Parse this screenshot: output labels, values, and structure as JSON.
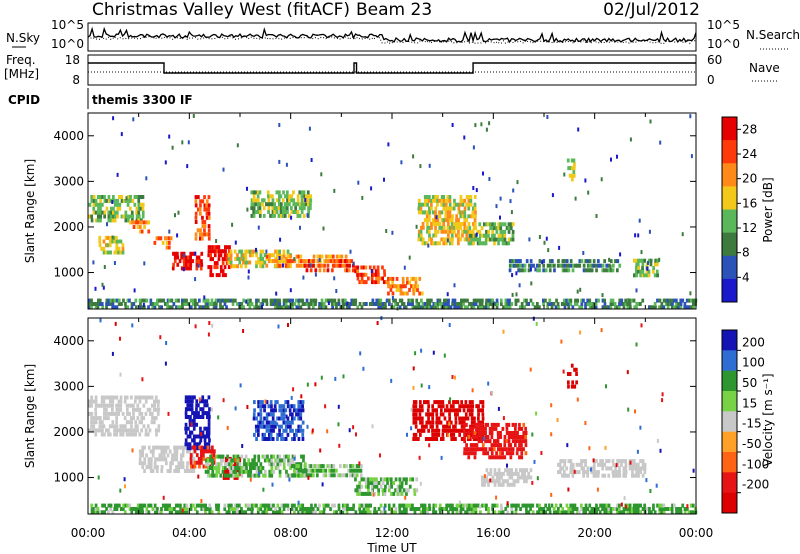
{
  "header": {
    "title": "Christmas Valley West (fitACF)",
    "beam": "Beam 23",
    "date": "02/Jul/2012"
  },
  "param_panel": {
    "nsky_label": "N.Sky",
    "nsearch_label": "N.Search",
    "noise_ticks_left": [
      "10^5",
      "10^0"
    ],
    "noise_ticks_right": [
      "10^5",
      "10^0"
    ],
    "freq_label": [
      "Freq.",
      "[MHz]"
    ],
    "freq_ticks": [
      "18",
      "8"
    ],
    "nave_label": "Nave",
    "nave_ticks": [
      "60",
      "0"
    ],
    "cpid_label": "CPID",
    "cpid_value": "themis 3300 IF"
  },
  "colors": {
    "power": [
      "#1a1acc",
      "#2a52b8",
      "#3d7a3d",
      "#5ab85a",
      "#f2c81a",
      "#ff8a1a",
      "#ff3a0a",
      "#e60000"
    ],
    "velocity": [
      "#1414b4",
      "#2e6ed2",
      "#2e962e",
      "#78d246",
      "#c8c8c8",
      "#ffa028",
      "#ff6414",
      "#e61414",
      "#dc0000"
    ],
    "ground_scatter": "#c8c8c8"
  },
  "chart_data": [
    {
      "type": "heatmap",
      "panel": "power",
      "ylabel": "Slant Range [km]",
      "yticks": [
        "1000",
        "2000",
        "3000",
        "4000"
      ],
      "ylim": [
        200,
        4500
      ],
      "xlim_hours": [
        0,
        24
      ],
      "colorbar_label": "Power [dB]",
      "colorbar_ticks": [
        "4",
        "8",
        "12",
        "16",
        "20",
        "24",
        "28"
      ],
      "colorbar_range": [
        0,
        30
      ],
      "features": [
        {
          "t": [
            0.0,
            2.2
          ],
          "r": [
            2100,
            2700
          ],
          "level": 3
        },
        {
          "t": [
            0.4,
            1.4
          ],
          "r": [
            1400,
            1800
          ],
          "level": 4
        },
        {
          "t": [
            1.6,
            2.4
          ],
          "r": [
            1850,
            2150
          ],
          "level": 5
        },
        {
          "t": [
            2.5,
            3.3
          ],
          "r": [
            1500,
            1800
          ],
          "level": 5
        },
        {
          "t": [
            3.3,
            4.5
          ],
          "r": [
            1050,
            1450
          ],
          "level": 7
        },
        {
          "t": [
            4.2,
            4.8
          ],
          "r": [
            1700,
            2700
          ],
          "level": 6
        },
        {
          "t": [
            4.7,
            5.6
          ],
          "r": [
            900,
            1600
          ],
          "level": 7
        },
        {
          "t": [
            5.5,
            8.0
          ],
          "r": [
            1100,
            1500
          ],
          "level": 4
        },
        {
          "t": [
            6.4,
            8.8
          ],
          "r": [
            2200,
            2800
          ],
          "level": 3
        },
        {
          "t": [
            7.0,
            10.2
          ],
          "r": [
            1100,
            1400
          ],
          "level": 5
        },
        {
          "t": [
            8.5,
            10.5
          ],
          "r": [
            1000,
            1300
          ],
          "level": 6
        },
        {
          "t": [
            10.5,
            11.8
          ],
          "r": [
            750,
            1150
          ],
          "level": 6
        },
        {
          "t": [
            11.8,
            13.2
          ],
          "r": [
            500,
            900
          ],
          "level": 5
        },
        {
          "t": [
            13.0,
            15.3
          ],
          "r": [
            1600,
            2700
          ],
          "level": 4
        },
        {
          "t": [
            15.0,
            16.8
          ],
          "r": [
            1600,
            2100
          ],
          "level": 3
        },
        {
          "t": [
            16.6,
            21.0
          ],
          "r": [
            1000,
            1300
          ],
          "level": 2
        },
        {
          "t": [
            18.9,
            19.2
          ],
          "r": [
            3000,
            3500
          ],
          "level": 4
        },
        {
          "t": [
            21.5,
            22.5
          ],
          "r": [
            900,
            1300
          ],
          "level": 3
        },
        {
          "t": [
            0.0,
            24.0
          ],
          "r": [
            200,
            420
          ],
          "level": 2
        }
      ]
    },
    {
      "type": "heatmap",
      "panel": "velocity",
      "ylabel": "Slant Range [km]",
      "yticks": [
        "1000",
        "2000",
        "3000",
        "4000"
      ],
      "ylim": [
        200,
        4500
      ],
      "xlim_hours": [
        0,
        24
      ],
      "xlabel": "Time UT",
      "xticks": [
        "00:00",
        "04:00",
        "08:00",
        "12:00",
        "16:00",
        "20:00",
        "00:00"
      ],
      "colorbar_label": "Velocity [m s⁻¹]",
      "colorbar_ticks": [
        "200",
        "100",
        "50",
        "15",
        "-15",
        "-50",
        "-100",
        "-200"
      ],
      "colorbar_range": [
        -250,
        250
      ],
      "features": [
        {
          "t": [
            0.0,
            2.8
          ],
          "r": [
            1900,
            2800
          ],
          "value": 0
        },
        {
          "t": [
            2.0,
            4.2
          ],
          "r": [
            1100,
            1700
          ],
          "value": 0
        },
        {
          "t": [
            3.8,
            4.8
          ],
          "r": [
            1600,
            2800
          ],
          "value": 200
        },
        {
          "t": [
            4.0,
            5.0
          ],
          "r": [
            1200,
            1700
          ],
          "value": -80
        },
        {
          "t": [
            5.3,
            6.0
          ],
          "r": [
            950,
            1450
          ],
          "value": -220
        },
        {
          "t": [
            4.6,
            8.6
          ],
          "r": [
            1000,
            1500
          ],
          "value": 30
        },
        {
          "t": [
            6.5,
            8.5
          ],
          "r": [
            1800,
            2700
          ],
          "value": 150
        },
        {
          "t": [
            8.0,
            10.8
          ],
          "r": [
            1000,
            1300
          ],
          "value": 30
        },
        {
          "t": [
            10.5,
            13.0
          ],
          "r": [
            600,
            1000
          ],
          "value": 25
        },
        {
          "t": [
            12.8,
            15.6
          ],
          "r": [
            1800,
            2700
          ],
          "value": -220
        },
        {
          "t": [
            14.8,
            17.3
          ],
          "r": [
            1400,
            2200
          ],
          "value": -100
        },
        {
          "t": [
            15.5,
            17.5
          ],
          "r": [
            800,
            1200
          ],
          "value": 0
        },
        {
          "t": [
            18.5,
            22.0
          ],
          "r": [
            1000,
            1400
          ],
          "value": 0
        },
        {
          "t": [
            18.9,
            19.3
          ],
          "r": [
            2950,
            3500
          ],
          "value": -220
        },
        {
          "t": [
            0.0,
            24.0
          ],
          "r": [
            200,
            420
          ],
          "value": 40
        }
      ]
    }
  ]
}
